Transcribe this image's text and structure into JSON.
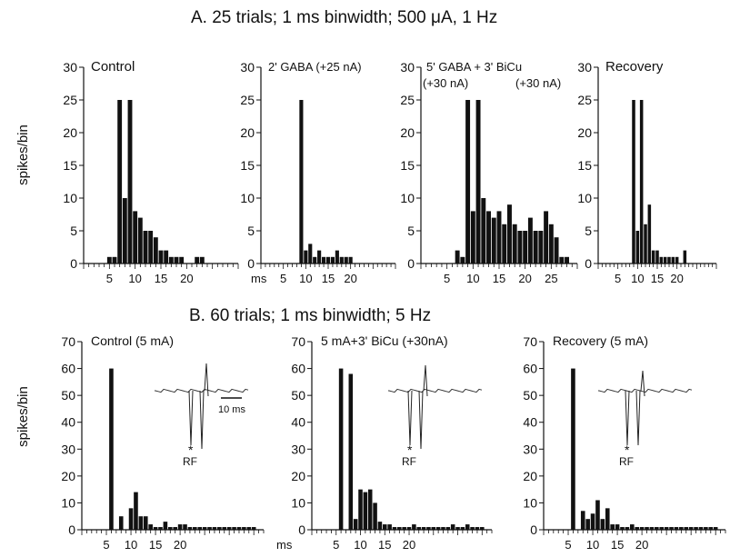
{
  "figure": {
    "title_a": "A. 25 trials; 1 ms binwidth; 500 μA, 1 Hz",
    "title_b": "B. 60 trials; 1 ms binwidth; 5 Hz",
    "ylabel": "spikes/bin",
    "xunit": "ms",
    "inset": {
      "scale_label": "10 ms",
      "star": "*",
      "rf_label": "RF"
    }
  },
  "chart_data": [
    {
      "type": "bar",
      "row": "A",
      "title": "Control",
      "ylim": [
        0,
        30
      ],
      "yticks": [
        0,
        5,
        10,
        15,
        20,
        25,
        30
      ],
      "xlim": [
        0,
        30
      ],
      "xticks": [
        5,
        10,
        15,
        20
      ],
      "show_unit": true,
      "x": [
        5,
        6,
        7,
        8,
        9,
        10,
        11,
        12,
        13,
        14,
        15,
        16,
        17,
        18,
        19,
        22,
        23
      ],
      "values": [
        1,
        1,
        25,
        10,
        25,
        8,
        7,
        5,
        5,
        4,
        2,
        2,
        1,
        1,
        1,
        1,
        1
      ]
    },
    {
      "type": "bar",
      "row": "A",
      "title": "2' GABA (+25 nA)",
      "ylim": [
        0,
        30
      ],
      "yticks": [
        0,
        5,
        10,
        15,
        20,
        25,
        30
      ],
      "xlim": [
        0,
        30
      ],
      "xticks": [
        5,
        10,
        15,
        20
      ],
      "x": [
        9,
        10,
        11,
        12,
        13,
        14,
        15,
        16,
        17,
        18,
        19,
        20
      ],
      "values": [
        25,
        2,
        3,
        1,
        2,
        1,
        1,
        1,
        2,
        1,
        1,
        1
      ]
    },
    {
      "type": "bar",
      "row": "A",
      "title": "5' GABA  +  3' BiCu",
      "subtitle_left": "(+30 nA)",
      "subtitle_right": "(+30 nA)",
      "ylim": [
        0,
        30
      ],
      "yticks": [
        0,
        5,
        10,
        15,
        20,
        25,
        30
      ],
      "xlim": [
        0,
        30
      ],
      "xticks": [
        5,
        10,
        15,
        20,
        25
      ],
      "x": [
        7,
        8,
        9,
        10,
        11,
        12,
        13,
        14,
        15,
        16,
        17,
        18,
        19,
        20,
        21,
        22,
        23,
        24,
        25,
        26,
        27,
        28
      ],
      "values": [
        2,
        1,
        25,
        8,
        25,
        10,
        8,
        7,
        8,
        6,
        9,
        6,
        5,
        5,
        7,
        5,
        5,
        8,
        6,
        4,
        1,
        1
      ]
    },
    {
      "type": "bar",
      "row": "A",
      "title": "Recovery",
      "ylim": [
        0,
        30
      ],
      "yticks": [
        0,
        5,
        10,
        15,
        20,
        25,
        30
      ],
      "xlim": [
        0,
        30
      ],
      "xticks": [
        5,
        10,
        15,
        20
      ],
      "x": [
        9,
        10,
        11,
        12,
        13,
        14,
        15,
        16,
        17,
        18,
        19,
        20,
        22
      ],
      "values": [
        25,
        5,
        25,
        6,
        9,
        2,
        2,
        1,
        1,
        1,
        1,
        1,
        2
      ]
    },
    {
      "type": "bar",
      "row": "B",
      "title": "Control (5 mA)",
      "ylim": [
        0,
        70
      ],
      "yticks": [
        0,
        10,
        20,
        30,
        40,
        50,
        60,
        70
      ],
      "xlim": [
        0,
        37
      ],
      "xticks": [
        5,
        10,
        15,
        20
      ],
      "show_unit": true,
      "x": [
        6,
        8,
        10,
        11,
        12,
        13,
        14,
        15,
        16,
        17,
        18,
        19,
        20,
        21,
        22,
        23,
        24,
        25,
        26,
        27,
        28,
        29,
        30,
        31,
        32,
        33,
        34,
        35
      ],
      "values": [
        60,
        5,
        8,
        14,
        5,
        5,
        2,
        1,
        1,
        3,
        1,
        1,
        2,
        2,
        1,
        1,
        1,
        1,
        1,
        1,
        1,
        1,
        1,
        1,
        1,
        1,
        1,
        1
      ]
    },
    {
      "type": "bar",
      "row": "B",
      "title": "5 mA+3' BiCu (+30nA)",
      "ylim": [
        0,
        70
      ],
      "yticks": [
        0,
        10,
        20,
        30,
        40,
        50,
        60,
        70
      ],
      "xlim": [
        0,
        37
      ],
      "xticks": [
        5,
        10,
        15,
        20
      ],
      "x": [
        6,
        8,
        9,
        10,
        11,
        12,
        13,
        14,
        15,
        16,
        17,
        18,
        19,
        20,
        21,
        22,
        23,
        24,
        25,
        26,
        27,
        28,
        29,
        30,
        31,
        32,
        33,
        34,
        35
      ],
      "values": [
        60,
        58,
        4,
        15,
        14,
        15,
        10,
        3,
        2,
        2,
        1,
        1,
        1,
        1,
        2,
        1,
        1,
        1,
        1,
        1,
        1,
        1,
        2,
        1,
        1,
        2,
        1,
        1,
        1
      ]
    },
    {
      "type": "bar",
      "row": "B",
      "title": "Recovery (5 mA)",
      "ylim": [
        0,
        70
      ],
      "yticks": [
        0,
        10,
        20,
        30,
        40,
        50,
        60,
        70
      ],
      "xlim": [
        0,
        37
      ],
      "xticks": [
        5,
        10,
        15,
        20
      ],
      "x": [
        6,
        8,
        9,
        10,
        11,
        12,
        13,
        14,
        15,
        16,
        17,
        18,
        19,
        20,
        21,
        22,
        23,
        24,
        25,
        26,
        27,
        28,
        29,
        30,
        31,
        32,
        33,
        34,
        35
      ],
      "values": [
        60,
        7,
        4,
        6,
        11,
        4,
        8,
        2,
        2,
        1,
        1,
        2,
        1,
        1,
        1,
        1,
        1,
        1,
        1,
        1,
        1,
        1,
        1,
        1,
        1,
        1,
        1,
        1,
        1
      ]
    }
  ]
}
